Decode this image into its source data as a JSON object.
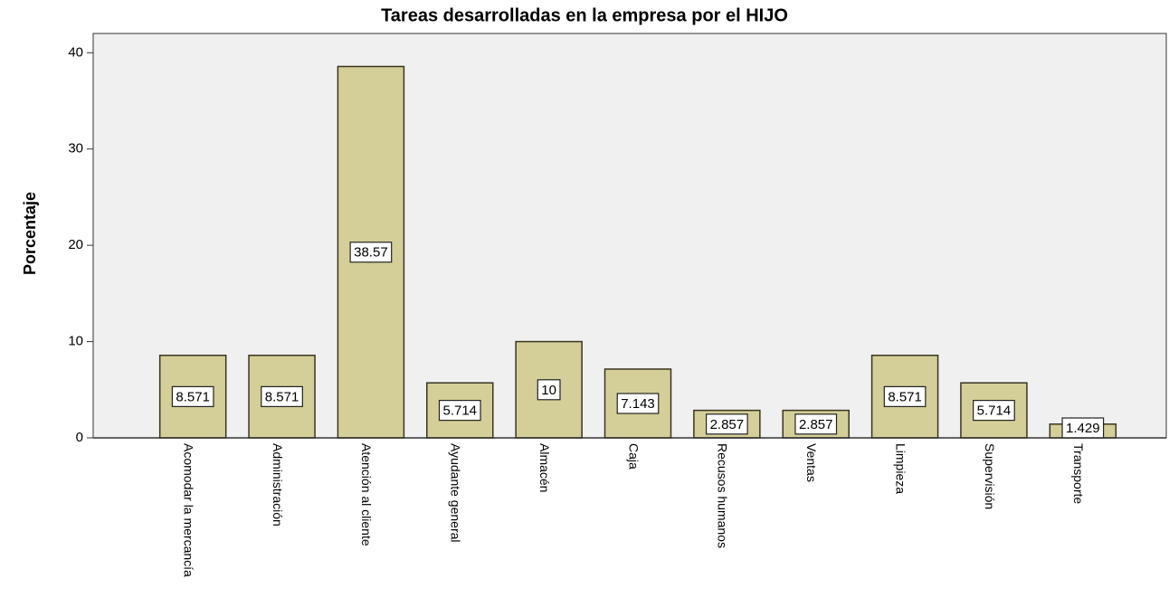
{
  "chart_data": {
    "type": "bar",
    "title": "Tareas desarrolladas en la empresa por el HIJO",
    "ylabel": "Porcentaje",
    "categories": [
      "Acomodar la mercancía",
      "Administración",
      "Atención al cliente",
      "Ayudante general",
      "Almacén",
      "Caja",
      "Recusos humanos",
      "Ventas",
      "Limpieza",
      "Supervisión",
      "Transporte"
    ],
    "values": [
      8.571,
      8.571,
      38.57,
      5.714,
      10,
      7.143,
      2.857,
      2.857,
      8.571,
      5.714,
      1.429
    ],
    "color": "#d4cf98",
    "ylim": [
      0,
      42
    ],
    "yticks": [
      0,
      10,
      20,
      30,
      40
    ]
  }
}
